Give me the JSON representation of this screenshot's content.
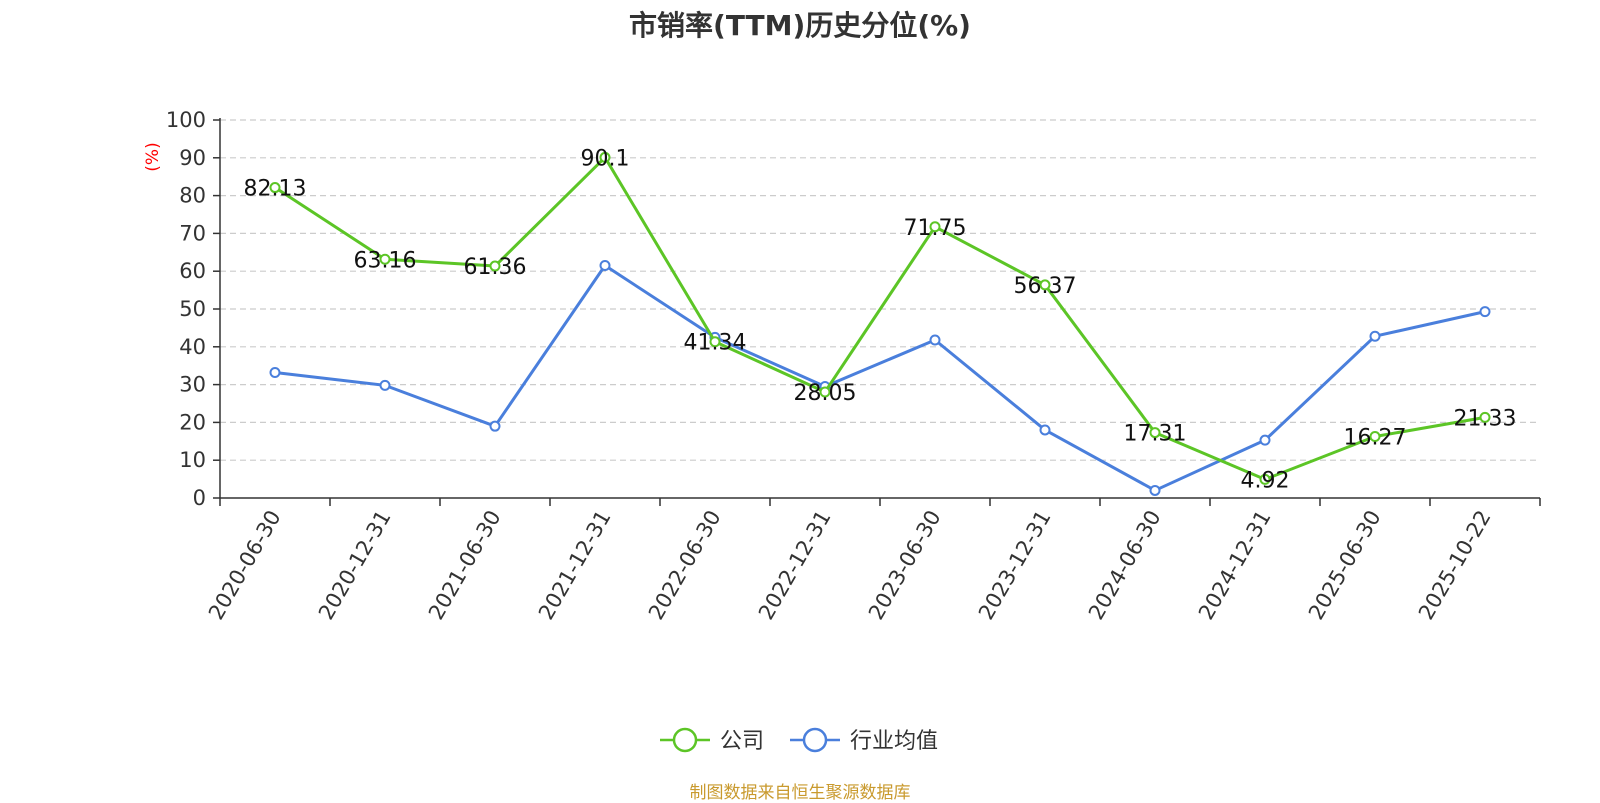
{
  "title": "市销率(TTM)历史分位(%)",
  "source_text": "制图数据来自恒生聚源数据库",
  "chart_data": {
    "type": "line",
    "title": "市销率(TTM)历史分位(%)",
    "ylabel": "(%)",
    "xlabel": "",
    "ylim": [
      0,
      100
    ],
    "yticks": [
      0,
      10,
      20,
      30,
      40,
      50,
      60,
      70,
      80,
      90,
      100
    ],
    "grid": true,
    "legend_position": "bottom",
    "categories": [
      "2020-06-30",
      "2020-12-31",
      "2021-06-30",
      "2021-12-31",
      "2022-06-30",
      "2022-12-31",
      "2023-06-30",
      "2023-12-31",
      "2024-06-30",
      "2024-12-31",
      "2025-06-30",
      "2025-10-22"
    ],
    "series": [
      {
        "name": "公司",
        "color": "#5cc526",
        "values": [
          82.13,
          63.16,
          61.36,
          90.1,
          41.34,
          28.05,
          71.75,
          56.37,
          17.31,
          4.92,
          16.27,
          21.33
        ],
        "labels": [
          "82.13",
          "63.16",
          "61.36",
          "90.1",
          "41.34",
          "28.05",
          "71.75",
          "56.37",
          "17.31",
          "4.92",
          "16.27",
          "21.33"
        ]
      },
      {
        "name": "行业均值",
        "color": "#4a7fdc",
        "values": [
          33.2,
          29.8,
          19.0,
          61.5,
          42.5,
          29.5,
          41.8,
          18.0,
          2.0,
          15.3,
          42.8,
          49.3
        ]
      }
    ]
  }
}
